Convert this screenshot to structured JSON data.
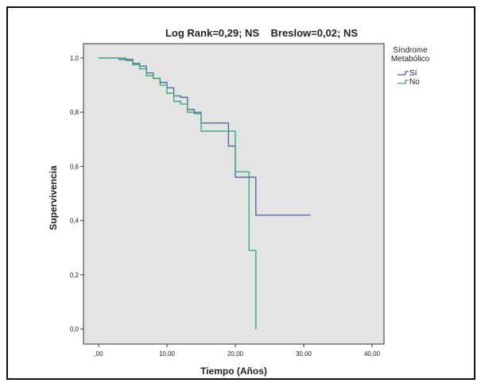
{
  "chart_data": {
    "type": "line",
    "step": true,
    "title": "Log Rank=0,29; NS    Breslow=0,02; NS",
    "xlabel": "Tiempo (Años)",
    "ylabel": "Supervivencia",
    "xlim": [
      0,
      40
    ],
    "ylim": [
      0,
      1
    ],
    "xticks": [
      0,
      10,
      20,
      30,
      40
    ],
    "xtick_labels": [
      ",00",
      "10,00",
      "20,00",
      "30,00",
      "40,00"
    ],
    "yticks": [
      0,
      0.2,
      0.4,
      0.6,
      0.8,
      1.0
    ],
    "ytick_labels": [
      "0,0",
      "0,2",
      "0,4",
      "0,6",
      "0,8",
      "1,0"
    ],
    "grid": false,
    "background": "#e4e4e4",
    "legend": {
      "title": "Síndrome Metabólico",
      "title_lines": [
        "Síndrome",
        "Metabólico"
      ],
      "position": "right"
    },
    "series": [
      {
        "name": "Sí",
        "color": "#4a5fa8",
        "x": [
          0,
          3,
          5,
          6,
          7,
          8,
          9,
          10,
          11,
          12,
          13,
          14,
          15,
          19,
          20,
          22,
          23,
          31
        ],
        "y": [
          1.0,
          0.995,
          0.98,
          0.97,
          0.945,
          0.925,
          0.91,
          0.89,
          0.86,
          0.855,
          0.81,
          0.795,
          0.76,
          0.675,
          0.56,
          0.56,
          0.42,
          0.42
        ]
      },
      {
        "name": "No",
        "color": "#2eaa6e",
        "x": [
          0,
          4,
          5,
          6,
          7,
          8,
          9,
          10,
          11,
          12,
          13,
          15,
          17,
          19,
          20,
          22,
          23,
          23.05
        ],
        "y": [
          1.0,
          0.99,
          0.975,
          0.96,
          0.935,
          0.925,
          0.9,
          0.87,
          0.84,
          0.83,
          0.8,
          0.73,
          0.73,
          0.73,
          0.58,
          0.29,
          0.0,
          0.0
        ]
      }
    ]
  }
}
